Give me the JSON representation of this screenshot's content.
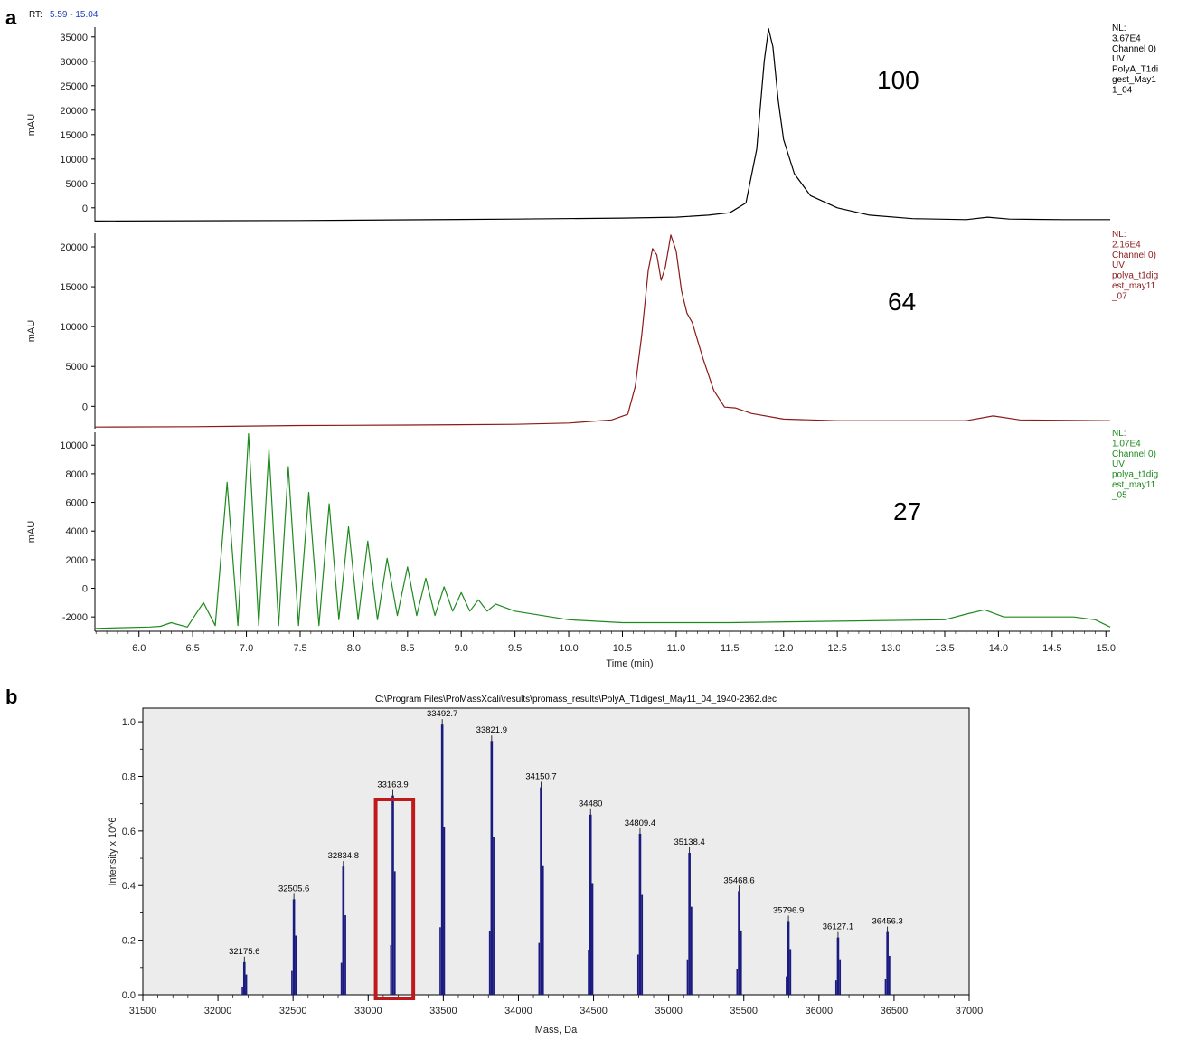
{
  "figure": {
    "panel_a_label": "a",
    "panel_b_label": "b",
    "rt_label": "RT:",
    "rt_range": "5.59 - 15.04"
  },
  "chart_data": [
    {
      "type": "line",
      "panel": "a",
      "title": "",
      "xlabel": "Time (min)",
      "xlim": [
        5.59,
        15.04
      ],
      "x_ticks": [
        "6.0",
        "6.5",
        "7.0",
        "7.5",
        "8.0",
        "8.5",
        "9.0",
        "9.5",
        "10.0",
        "10.5",
        "11.0",
        "11.5",
        "12.0",
        "12.5",
        "13.0",
        "13.5",
        "14.0",
        "14.5",
        "15.0"
      ],
      "series": [
        {
          "name": "100",
          "color": "#000000",
          "ylabel": "mAU",
          "ylim": [
            -3000,
            37000
          ],
          "y_ticks": [
            "35000",
            "30000",
            "25000",
            "20000",
            "15000",
            "10000",
            "5000",
            "0"
          ],
          "nl_label": [
            "NL:",
            "3.67E4",
            "Channel 0)",
            "UV",
            "PolyA_T1di",
            "gest_May1",
            "1_04"
          ],
          "points": [
            [
              5.59,
              -2700
            ],
            [
              6.5,
              -2650
            ],
            [
              7.5,
              -2600
            ],
            [
              8.5,
              -2450
            ],
            [
              9.5,
              -2300
            ],
            [
              10.5,
              -2100
            ],
            [
              11.0,
              -1900
            ],
            [
              11.3,
              -1500
            ],
            [
              11.5,
              -1000
            ],
            [
              11.65,
              1000
            ],
            [
              11.75,
              12000
            ],
            [
              11.82,
              30000
            ],
            [
              11.86,
              36700
            ],
            [
              11.9,
              33000
            ],
            [
              11.95,
              22000
            ],
            [
              12.0,
              14000
            ],
            [
              12.1,
              7000
            ],
            [
              12.25,
              2500
            ],
            [
              12.5,
              0
            ],
            [
              12.8,
              -1500
            ],
            [
              13.2,
              -2200
            ],
            [
              13.7,
              -2400
            ],
            [
              13.9,
              -1900
            ],
            [
              14.1,
              -2300
            ],
            [
              14.6,
              -2400
            ],
            [
              15.04,
              -2400
            ]
          ]
        },
        {
          "name": "64",
          "color": "#8b1a1a",
          "ylabel": "mAU",
          "ylim": [
            -2800,
            21700
          ],
          "y_ticks": [
            "20000",
            "15000",
            "10000",
            "5000",
            "0"
          ],
          "nl_label": [
            "NL:",
            "2.16E4",
            "Channel 0)",
            "UV",
            "polya_t1dig",
            "est_may11",
            "_07"
          ],
          "points": [
            [
              5.59,
              -2600
            ],
            [
              6.5,
              -2550
            ],
            [
              7.5,
              -2400
            ],
            [
              8.5,
              -2350
            ],
            [
              9.5,
              -2250
            ],
            [
              10.0,
              -2100
            ],
            [
              10.4,
              -1700
            ],
            [
              10.55,
              -1000
            ],
            [
              10.62,
              2500
            ],
            [
              10.68,
              9000
            ],
            [
              10.74,
              17000
            ],
            [
              10.78,
              19800
            ],
            [
              10.82,
              19000
            ],
            [
              10.86,
              15800
            ],
            [
              10.9,
              17500
            ],
            [
              10.95,
              21500
            ],
            [
              11.0,
              19500
            ],
            [
              11.05,
              14500
            ],
            [
              11.1,
              11700
            ],
            [
              11.15,
              10500
            ],
            [
              11.25,
              6000
            ],
            [
              11.35,
              2000
            ],
            [
              11.45,
              -100
            ],
            [
              11.55,
              -200
            ],
            [
              11.7,
              -900
            ],
            [
              12.0,
              -1600
            ],
            [
              12.5,
              -1800
            ],
            [
              13.0,
              -1800
            ],
            [
              13.7,
              -1800
            ],
            [
              13.95,
              -1200
            ],
            [
              14.2,
              -1700
            ],
            [
              15.04,
              -1800
            ]
          ]
        },
        {
          "name": "27",
          "color": "#1e8a1e",
          "ylabel": "mAU",
          "ylim": [
            -3000,
            10900
          ],
          "y_ticks": [
            "10000",
            "8000",
            "6000",
            "4000",
            "2000",
            "0",
            "-2000"
          ],
          "nl_label": [
            "NL:",
            "1.07E4",
            "Channel 0)",
            "UV",
            "polya_t1dig",
            "est_may11",
            "_05"
          ],
          "peaks": [
            [
              6.3,
              -2400
            ],
            [
              6.6,
              -1000
            ],
            [
              6.82,
              7400
            ],
            [
              7.02,
              10800
            ],
            [
              7.21,
              9700
            ],
            [
              7.39,
              8500
            ],
            [
              7.58,
              6700
            ],
            [
              7.77,
              5900
            ],
            [
              7.95,
              4300
            ],
            [
              8.13,
              3300
            ],
            [
              8.31,
              2100
            ],
            [
              8.5,
              1500
            ],
            [
              8.67,
              700
            ],
            [
              8.84,
              100
            ],
            [
              9.0,
              -300
            ],
            [
              9.16,
              -800
            ],
            [
              9.32,
              -1100
            ]
          ],
          "baseline": [
            [
              9.5,
              -1600
            ],
            [
              10.0,
              -2200
            ],
            [
              10.5,
              -2400
            ],
            [
              11.0,
              -2400
            ],
            [
              11.5,
              -2400
            ],
            [
              12.5,
              -2300
            ],
            [
              13.5,
              -2200
            ],
            [
              13.7,
              -1800
            ],
            [
              13.87,
              -1500
            ],
            [
              14.05,
              -2000
            ],
            [
              14.7,
              -2000
            ],
            [
              14.9,
              -2200
            ],
            [
              15.04,
              -2700
            ]
          ]
        }
      ]
    },
    {
      "type": "bar",
      "panel": "b",
      "title": "C:\\Program Files\\ProMassXcali\\results\\promass_results\\PolyA_T1digest_May11_04_1940-2362.dec",
      "xlabel": "Mass, Da",
      "ylabel": "Intensity x 10^6",
      "xlim": [
        31500,
        37000
      ],
      "ylim": [
        0,
        1.05
      ],
      "x_ticks": [
        "31500",
        "32000",
        "32500",
        "33000",
        "33500",
        "34000",
        "34500",
        "35000",
        "35500",
        "36000",
        "36500",
        "37000"
      ],
      "y_ticks": [
        "0.0",
        "0.2",
        "0.4",
        "0.6",
        "0.8",
        "1.0"
      ],
      "bar_color": "#1a1a80",
      "highlight_color": "#c0191c",
      "highlight_range": [
        33050,
        33300
      ],
      "peaks": [
        {
          "label": "32175.6",
          "mass": 32175.6,
          "intensity": 0.12
        },
        {
          "label": "32505.6",
          "mass": 32505.6,
          "intensity": 0.35
        },
        {
          "label": "32834.8",
          "mass": 32834.8,
          "intensity": 0.47
        },
        {
          "label": "33163.9",
          "mass": 33163.9,
          "intensity": 0.73
        },
        {
          "label": "33492.7",
          "mass": 33492.7,
          "intensity": 0.99
        },
        {
          "label": "33821.9",
          "mass": 33821.9,
          "intensity": 0.93
        },
        {
          "label": "34150.7",
          "mass": 34150.7,
          "intensity": 0.76
        },
        {
          "label": "34480",
          "mass": 34480.0,
          "intensity": 0.66
        },
        {
          "label": "34809.4",
          "mass": 34809.4,
          "intensity": 0.59
        },
        {
          "label": "35138.4",
          "mass": 35138.4,
          "intensity": 0.52
        },
        {
          "label": "35468.6",
          "mass": 35468.6,
          "intensity": 0.38
        },
        {
          "label": "35796.9",
          "mass": 35796.9,
          "intensity": 0.27
        },
        {
          "label": "36127.1",
          "mass": 36127.1,
          "intensity": 0.21
        },
        {
          "label": "36456.3",
          "mass": 36456.3,
          "intensity": 0.23
        }
      ]
    }
  ]
}
